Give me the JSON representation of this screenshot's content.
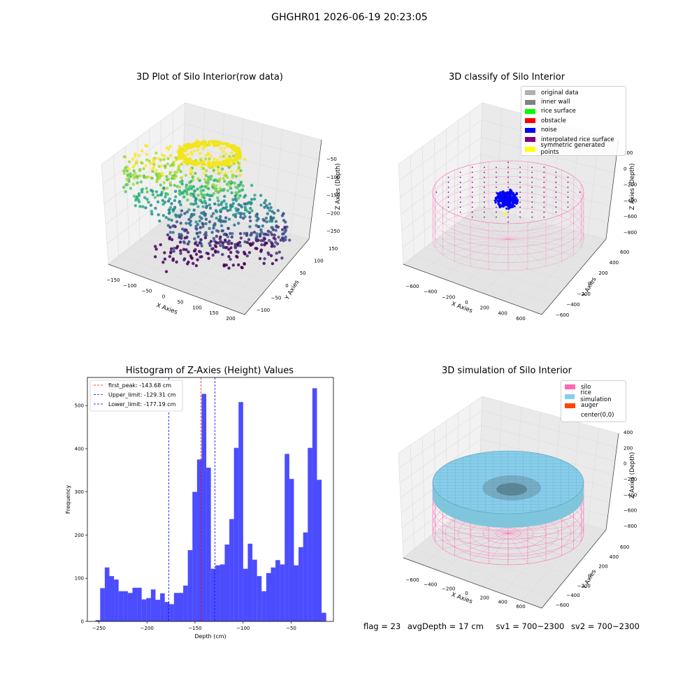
{
  "suptitle": "GHGHR01 2026-06-19 20:23:05",
  "panels": {
    "raw": {
      "title": "3D Plot of Silo Interior(row data)",
      "xlabel": "X Axies",
      "ylabel": "Y Axies",
      "zlabel": "Z Axies (Depth)",
      "xticks": [
        "−150",
        "−100",
        "−50",
        "0",
        "50",
        "100",
        "150",
        "200"
      ],
      "yticks": [
        "−100",
        "−50",
        "0",
        "50",
        "100",
        "150"
      ],
      "zticks": [
        "−50",
        "−100",
        "−150",
        "−200",
        "−250"
      ]
    },
    "classify": {
      "title": "3D classify of Silo Interior",
      "xlabel": "X Axies",
      "ylabel": "Y Axies",
      "zlabel": "Z Axies (Depth)",
      "xticks": [
        "−600",
        "−400",
        "−200",
        "0",
        "200",
        "400",
        "600"
      ],
      "yticks": [
        "−600",
        "−400",
        "−200",
        "0",
        "200",
        "400",
        "600"
      ],
      "zticks": [
        "200",
        "0",
        "−200",
        "−400",
        "−600",
        "−800"
      ],
      "legend": [
        {
          "label": "original data",
          "color": "#b0b0b0"
        },
        {
          "label": "inner wall",
          "color": "#808080"
        },
        {
          "label": "rice surface",
          "color": "#00ff00"
        },
        {
          "label": "obstacle",
          "color": "#ff0000"
        },
        {
          "label": "noise",
          "color": "#0000ff"
        },
        {
          "label": "interpolated rice surface",
          "color": "#800080"
        },
        {
          "label": "symmetric generated points",
          "color": "#ffff00"
        }
      ]
    },
    "simulation": {
      "title": "3D simulation of Silo Interior",
      "xlabel": "X Axies",
      "ylabel": "Y Axies",
      "zlabel": "Z Axies (Depth)",
      "xticks": [
        "−600",
        "−400",
        "−200",
        "0",
        "200",
        "400",
        "600"
      ],
      "yticks": [
        "−600",
        "−400",
        "−200",
        "0",
        "200",
        "400",
        "600"
      ],
      "zticks": [
        "400",
        "200",
        "0",
        "−200",
        "−400",
        "−600",
        "−800"
      ],
      "legend": [
        {
          "label": "silo",
          "color": "#ff69b4"
        },
        {
          "label": "rice simulation",
          "color": "#87ceeb"
        },
        {
          "label": "auger",
          "color": "#ff4500"
        },
        {
          "label": "center(0,0)",
          "color": "#ffffff"
        }
      ]
    }
  },
  "footer": {
    "flag": "flag = 23",
    "avg_depth": "avgDepth = 17 cm",
    "sv1": "sv1 = 700~2300",
    "sv2": "sv2 = 700~2300"
  },
  "chart_data": [
    {
      "type": "histogram",
      "title": "Histogram of Z-Axies (Height) Values",
      "xlabel": "Depth (cm)",
      "ylabel": "Frequency",
      "xlim": [
        -262,
        -6
      ],
      "ylim": [
        0,
        565
      ],
      "xticks": [
        -250,
        -200,
        -150,
        -100,
        -50
      ],
      "yticks": [
        0,
        100,
        200,
        300,
        400,
        500
      ],
      "bar_color": "#0000ff",
      "bin_width": 4.8,
      "bin_start": -253.5,
      "values": [
        3,
        77,
        125,
        105,
        97,
        70,
        70,
        66,
        78,
        78,
        51,
        54,
        74,
        50,
        65,
        45,
        40,
        66,
        66,
        83,
        165,
        300,
        375,
        527,
        356,
        122,
        130,
        132,
        178,
        237,
        402,
        508,
        122,
        180,
        143,
        105,
        70,
        112,
        125,
        142,
        132,
        388,
        330,
        130,
        172,
        206,
        402,
        540,
        328,
        20
      ],
      "lines": [
        {
          "label": "first_peak: -143.68 cm",
          "x": -143.68,
          "color": "#ff0000"
        },
        {
          "label": "Upper_limit: -129.31 cm",
          "x": -129.31,
          "color": "#0000ff"
        },
        {
          "label": "Lower_limit: -177.19 cm",
          "x": -177.19,
          "color": "#0000ff"
        }
      ]
    }
  ]
}
